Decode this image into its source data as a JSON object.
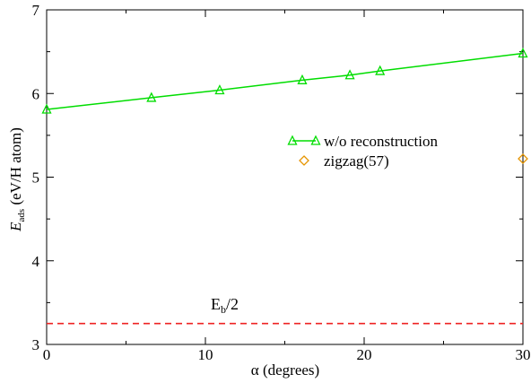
{
  "chart_data": {
    "type": "line",
    "xlabel": "α  (degrees)",
    "ylabel": {
      "main": "E",
      "sub": "ads",
      "unit": " (eV/H atom)"
    },
    "xlim": [
      0,
      30
    ],
    "ylim": [
      3,
      7
    ],
    "x_ticks": [
      0,
      10,
      20,
      30
    ],
    "y_ticks": [
      3,
      4,
      5,
      6,
      7
    ],
    "grid": false,
    "legend_position": "right",
    "series": [
      {
        "name": "w/o reconstruction",
        "style": "line-with-triangle-markers",
        "color": "#00dd00",
        "x": [
          0,
          6.6,
          10.9,
          16.1,
          19.1,
          21.0,
          30
        ],
        "y": [
          5.81,
          5.95,
          6.04,
          6.16,
          6.22,
          6.27,
          6.48
        ]
      },
      {
        "name": "zigzag(57)",
        "style": "diamond-marker",
        "color": "#e69500",
        "x": [
          30
        ],
        "y": [
          5.22
        ]
      },
      {
        "name": "",
        "style": "dashed-line",
        "color": "#ee2222",
        "x": [
          0,
          30
        ],
        "y": [
          3.25,
          3.25
        ]
      }
    ],
    "annotations": [
      {
        "main": "E",
        "sub": "b",
        "rest": "/2",
        "x": 10,
        "y": 3.38
      }
    ]
  }
}
